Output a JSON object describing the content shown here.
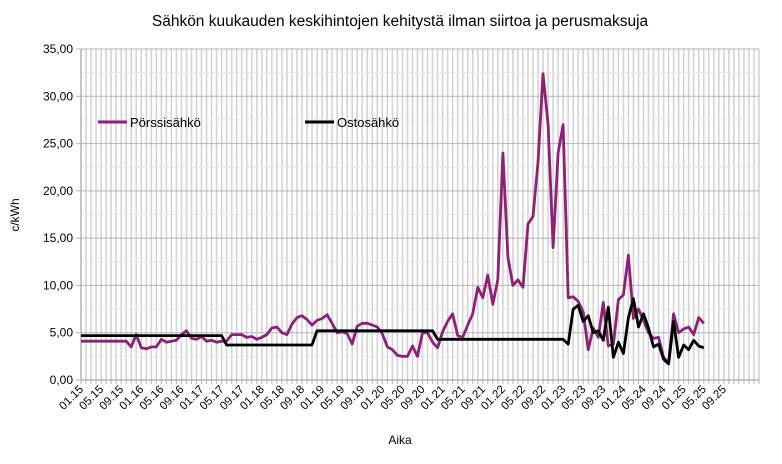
{
  "chart_data": {
    "type": "line",
    "title": "Sähkön kuukauden keskihintojen kehitystä  ilman siirtoa ja perusmaksuja",
    "xlabel": "Aika",
    "ylabel": "c/kWh",
    "ylim": [
      0,
      35
    ],
    "y_ticks": [
      "0,00",
      "5,00",
      "10,00",
      "15,00",
      "20,00",
      "25,00",
      "30,00",
      "35,00"
    ],
    "x_start": "01.15",
    "x_step": "1 month",
    "x_tick_labels": [
      "01.15",
      "05.15",
      "09.15",
      "01.16",
      "05.16",
      "09.16",
      "01.17",
      "05.17",
      "09.17",
      "01.18",
      "05.18",
      "09.18",
      "01.19",
      "05.19",
      "09.19",
      "01.20",
      "05.20",
      "09.20",
      "01.21",
      "05.21",
      "09.21",
      "01.22",
      "05.22",
      "09.22",
      "01.23",
      "05.23",
      "09.23",
      "01.24",
      "05.24",
      "09.24",
      "01.25",
      "05.25",
      "09.25"
    ],
    "grid": true,
    "legend_placement": "top-left inside",
    "series": [
      {
        "name": "Pörssisähkö",
        "color": "#8e2077",
        "values": [
          4.1,
          4.1,
          4.1,
          4.1,
          4.1,
          4.1,
          4.1,
          4.1,
          4.1,
          4.1,
          3.5,
          4.8,
          3.4,
          3.3,
          3.5,
          3.5,
          4.3,
          4.0,
          4.1,
          4.2,
          4.8,
          5.2,
          4.4,
          4.3,
          4.6,
          4.1,
          4.2,
          4.0,
          4.1,
          4.1,
          4.8,
          4.8,
          4.8,
          4.5,
          4.6,
          4.3,
          4.5,
          4.8,
          5.5,
          5.6,
          5.0,
          4.8,
          5.9,
          6.6,
          6.8,
          6.4,
          5.8,
          6.3,
          6.5,
          6.9,
          6.0,
          5.0,
          5.1,
          4.9,
          3.8,
          5.7,
          6.0,
          6.0,
          5.8,
          5.6,
          4.9,
          3.5,
          3.2,
          2.6,
          2.5,
          2.5,
          3.6,
          2.5,
          5.0,
          5.0,
          4.0,
          3.4,
          5.1,
          6.2,
          7.0,
          4.7,
          4.5,
          5.8,
          7.0,
          9.8,
          8.7,
          11.1,
          8.0,
          10.6,
          24.0,
          13.0,
          10.0,
          10.6,
          9.8,
          16.5,
          17.3,
          23.0,
          32.4,
          27.0,
          14.0,
          24.0,
          27.0,
          8.7,
          8.8,
          8.3,
          7.2,
          3.2,
          5.5,
          4.5,
          8.2,
          3.6,
          3.8,
          8.5,
          9.0,
          13.2,
          6.5,
          7.5,
          6.3,
          5.0,
          4.4,
          4.5,
          2.4,
          1.8,
          7.0,
          5.0,
          5.4,
          5.6,
          4.8,
          6.6,
          6.0
        ]
      },
      {
        "name": "Ostosähkö",
        "color": "#000000",
        "values": [
          4.7,
          4.7,
          4.7,
          4.7,
          4.7,
          4.7,
          4.7,
          4.7,
          4.7,
          4.7,
          4.7,
          4.7,
          4.7,
          4.7,
          4.7,
          4.7,
          4.7,
          4.7,
          4.7,
          4.7,
          4.7,
          4.7,
          4.7,
          4.7,
          4.7,
          4.7,
          4.7,
          4.7,
          4.7,
          3.7,
          3.7,
          3.7,
          3.7,
          3.7,
          3.7,
          3.7,
          3.7,
          3.7,
          3.7,
          3.7,
          3.7,
          3.7,
          3.7,
          3.7,
          3.7,
          3.7,
          3.7,
          5.2,
          5.2,
          5.2,
          5.2,
          5.2,
          5.2,
          5.2,
          5.2,
          5.2,
          5.2,
          5.2,
          5.2,
          5.2,
          5.2,
          5.2,
          5.2,
          5.2,
          5.2,
          5.2,
          5.2,
          5.2,
          5.2,
          5.2,
          5.2,
          4.3,
          4.3,
          4.3,
          4.3,
          4.3,
          4.3,
          4.3,
          4.3,
          4.3,
          4.3,
          4.3,
          4.3,
          4.3,
          4.3,
          4.3,
          4.3,
          4.3,
          4.3,
          4.3,
          4.3,
          4.3,
          4.3,
          4.3,
          4.3,
          4.3,
          4.3,
          3.8,
          7.5,
          7.9,
          6.2,
          6.8,
          5.0,
          5.2,
          4.2,
          7.7,
          2.4,
          4.0,
          2.8,
          6.6,
          8.6,
          5.6,
          7.0,
          5.5,
          3.5,
          3.8,
          2.2,
          1.7,
          6.2,
          2.4,
          3.7,
          3.2,
          4.2,
          3.6,
          3.4
        ]
      }
    ]
  }
}
